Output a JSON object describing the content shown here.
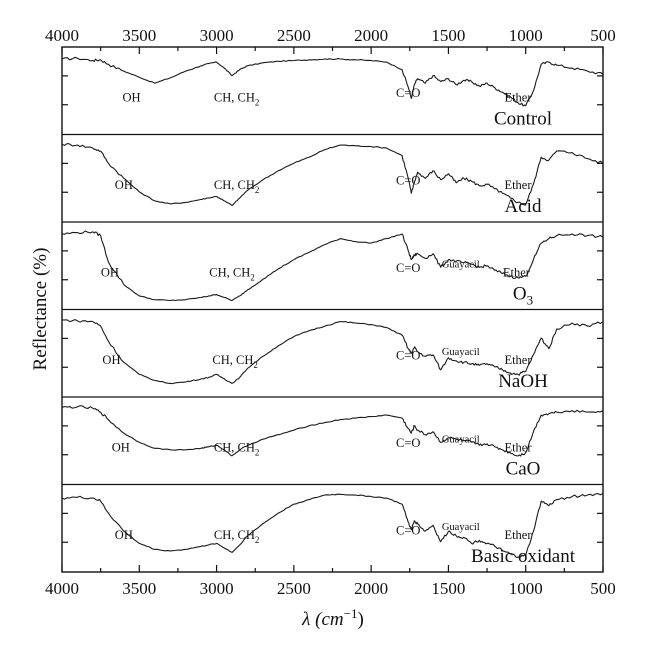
{
  "chart_data": {
    "type": "line",
    "title": "",
    "xlabel": "λ (cm",
    "xlabel_sup": "−1",
    "xlabel_close": ")",
    "ylabel": "Reflectance (%)",
    "xlim": [
      4000,
      500
    ],
    "x_ticks": [
      "4000",
      "3500",
      "3000",
      "2500",
      "2000",
      "1500",
      "1000",
      "500"
    ],
    "x_tick_values": [
      4000,
      3500,
      3000,
      2500,
      2000,
      1500,
      1000,
      500
    ],
    "grid": false,
    "legend": "none",
    "line_color": "#1a1a1a",
    "series": [
      {
        "name": "Control",
        "x": [
          4000,
          3900,
          3800,
          3750,
          3700,
          3600,
          3500,
          3400,
          3300,
          3200,
          3100,
          3050,
          3000,
          2950,
          2900,
          2850,
          2800,
          2700,
          2600,
          2500,
          2400,
          2300,
          2200,
          2100,
          2000,
          1900,
          1800,
          1760,
          1740,
          1720,
          1700,
          1650,
          1600,
          1550,
          1500,
          1450,
          1400,
          1350,
          1300,
          1250,
          1200,
          1150,
          1100,
          1050,
          1000,
          950,
          900,
          850,
          800,
          700,
          600,
          500
        ],
        "y": [
          0.92,
          0.93,
          0.9,
          0.91,
          0.85,
          0.76,
          0.68,
          0.6,
          0.67,
          0.76,
          0.83,
          0.86,
          0.88,
          0.8,
          0.7,
          0.78,
          0.83,
          0.87,
          0.89,
          0.9,
          0.91,
          0.92,
          0.92,
          0.91,
          0.9,
          0.88,
          0.78,
          0.55,
          0.4,
          0.58,
          0.66,
          0.6,
          0.7,
          0.62,
          0.66,
          0.58,
          0.64,
          0.62,
          0.56,
          0.6,
          0.54,
          0.48,
          0.42,
          0.34,
          0.3,
          0.5,
          0.85,
          0.88,
          0.84,
          0.8,
          0.76,
          0.72
        ],
        "annotations": [
          {
            "text": "OH",
            "x": 3550
          },
          {
            "text": "CH, CH",
            "sub": "2",
            "x": 2870
          },
          {
            "text": "C=O",
            "x": 1760
          },
          {
            "text": "Ether",
            "x": 1050
          }
        ]
      },
      {
        "name": "Acid",
        "x": [
          4000,
          3900,
          3800,
          3750,
          3700,
          3600,
          3500,
          3400,
          3300,
          3200,
          3100,
          3050,
          3000,
          2950,
          2900,
          2850,
          2800,
          2700,
          2600,
          2500,
          2400,
          2300,
          2200,
          2100,
          2000,
          1900,
          1800,
          1760,
          1740,
          1720,
          1700,
          1650,
          1600,
          1550,
          1500,
          1450,
          1400,
          1350,
          1300,
          1250,
          1200,
          1150,
          1100,
          1050,
          1000,
          950,
          900,
          850,
          800,
          700,
          600,
          500
        ],
        "y": [
          0.95,
          0.94,
          0.9,
          0.86,
          0.7,
          0.5,
          0.32,
          0.2,
          0.16,
          0.18,
          0.22,
          0.24,
          0.26,
          0.2,
          0.14,
          0.24,
          0.34,
          0.48,
          0.6,
          0.7,
          0.78,
          0.88,
          0.94,
          0.93,
          0.92,
          0.9,
          0.8,
          0.5,
          0.3,
          0.45,
          0.58,
          0.5,
          0.6,
          0.48,
          0.56,
          0.44,
          0.5,
          0.46,
          0.4,
          0.42,
          0.36,
          0.3,
          0.24,
          0.18,
          0.15,
          0.42,
          0.78,
          0.74,
          0.86,
          0.84,
          0.76,
          0.7
        ],
        "annotations": [
          {
            "text": "OH",
            "x": 3600
          },
          {
            "text": "CH, CH",
            "sub": "2",
            "x": 2870
          },
          {
            "text": "C=O",
            "x": 1760
          },
          {
            "text": "Ether",
            "x": 1050
          }
        ]
      },
      {
        "name": "O",
        "name_sub": "3",
        "x": [
          4000,
          3900,
          3800,
          3750,
          3700,
          3600,
          3500,
          3400,
          3300,
          3200,
          3100,
          3050,
          3000,
          2950,
          2900,
          2850,
          2800,
          2700,
          2600,
          2500,
          2400,
          2300,
          2200,
          2100,
          2000,
          1900,
          1800,
          1760,
          1740,
          1720,
          1700,
          1650,
          1600,
          1550,
          1500,
          1450,
          1400,
          1350,
          1300,
          1250,
          1200,
          1150,
          1100,
          1050,
          1000,
          950,
          900,
          850,
          800,
          700,
          600,
          500
        ],
        "y": [
          0.92,
          0.94,
          0.95,
          0.9,
          0.55,
          0.25,
          0.1,
          0.05,
          0.04,
          0.05,
          0.08,
          0.1,
          0.12,
          0.08,
          0.04,
          0.1,
          0.18,
          0.32,
          0.46,
          0.58,
          0.68,
          0.78,
          0.86,
          0.82,
          0.8,
          0.86,
          0.92,
          0.7,
          0.58,
          0.64,
          0.66,
          0.6,
          0.66,
          0.48,
          0.58,
          0.56,
          0.54,
          0.52,
          0.48,
          0.5,
          0.44,
          0.4,
          0.36,
          0.34,
          0.36,
          0.58,
          0.8,
          0.86,
          0.9,
          0.92,
          0.9,
          0.88
        ],
        "annotations": [
          {
            "text": "OH",
            "x": 3690
          },
          {
            "text": "CH, CH",
            "sub": "2",
            "x": 2900
          },
          {
            "text": "C=O",
            "x": 1760
          },
          {
            "text": "Guayacil",
            "x": 1420,
            "small": true
          },
          {
            "text": "Ether",
            "x": 1060
          }
        ]
      },
      {
        "name": "NaOH",
        "x": [
          4000,
          3900,
          3800,
          3750,
          3700,
          3600,
          3500,
          3400,
          3300,
          3200,
          3100,
          3050,
          3000,
          2950,
          2900,
          2850,
          2800,
          2700,
          2600,
          2500,
          2400,
          2300,
          2200,
          2100,
          2000,
          1900,
          1800,
          1760,
          1740,
          1720,
          1700,
          1650,
          1600,
          1550,
          1500,
          1450,
          1400,
          1350,
          1300,
          1250,
          1200,
          1150,
          1100,
          1050,
          1000,
          950,
          900,
          850,
          800,
          700,
          600,
          500
        ],
        "y": [
          0.94,
          0.93,
          0.92,
          0.86,
          0.66,
          0.38,
          0.22,
          0.14,
          0.1,
          0.12,
          0.16,
          0.18,
          0.22,
          0.16,
          0.1,
          0.18,
          0.3,
          0.46,
          0.6,
          0.72,
          0.8,
          0.86,
          0.92,
          0.9,
          0.88,
          0.84,
          0.74,
          0.56,
          0.5,
          0.58,
          0.52,
          0.46,
          0.48,
          0.28,
          0.44,
          0.4,
          0.38,
          0.36,
          0.34,
          0.36,
          0.32,
          0.28,
          0.24,
          0.22,
          0.26,
          0.48,
          0.7,
          0.56,
          0.82,
          0.9,
          0.86,
          0.92
        ],
        "annotations": [
          {
            "text": "OH",
            "x": 3680
          },
          {
            "text": "CH, CH",
            "sub": "2",
            "x": 2880
          },
          {
            "text": "C=O",
            "x": 1760
          },
          {
            "text": "Guayacil",
            "x": 1420,
            "small": true
          },
          {
            "text": "Ether",
            "x": 1050
          }
        ]
      },
      {
        "name": "CaO",
        "x": [
          4000,
          3900,
          3800,
          3750,
          3700,
          3600,
          3500,
          3400,
          3300,
          3200,
          3100,
          3050,
          3000,
          2950,
          2900,
          2850,
          2800,
          2700,
          2600,
          2500,
          2400,
          2300,
          2200,
          2100,
          2000,
          1900,
          1800,
          1760,
          1740,
          1720,
          1700,
          1650,
          1600,
          1550,
          1500,
          1450,
          1400,
          1350,
          1300,
          1250,
          1200,
          1150,
          1100,
          1050,
          1000,
          950,
          900,
          850,
          800,
          700,
          600,
          500
        ],
        "y": [
          0.94,
          0.95,
          0.93,
          0.88,
          0.78,
          0.6,
          0.48,
          0.4,
          0.38,
          0.38,
          0.4,
          0.42,
          0.44,
          0.38,
          0.3,
          0.38,
          0.44,
          0.52,
          0.58,
          0.64,
          0.7,
          0.74,
          0.78,
          0.8,
          0.82,
          0.84,
          0.8,
          0.66,
          0.6,
          0.7,
          0.64,
          0.58,
          0.62,
          0.48,
          0.54,
          0.52,
          0.5,
          0.48,
          0.44,
          0.46,
          0.42,
          0.38,
          0.34,
          0.3,
          0.34,
          0.62,
          0.84,
          0.86,
          0.88,
          0.9,
          0.88,
          0.9
        ],
        "annotations": [
          {
            "text": "OH",
            "x": 3620
          },
          {
            "text": "CH, CH",
            "sub": "2",
            "x": 2870
          },
          {
            "text": "C=O",
            "x": 1760
          },
          {
            "text": "Guayacil",
            "x": 1420,
            "small": true
          },
          {
            "text": "Ether",
            "x": 1050
          }
        ]
      },
      {
        "name": "Basic oxidant",
        "x": [
          4000,
          3900,
          3800,
          3750,
          3700,
          3600,
          3500,
          3400,
          3300,
          3200,
          3100,
          3050,
          3000,
          2950,
          2900,
          2850,
          2800,
          2700,
          2600,
          2500,
          2400,
          2300,
          2200,
          2100,
          2000,
          1900,
          1800,
          1760,
          1740,
          1720,
          1700,
          1650,
          1600,
          1550,
          1500,
          1450,
          1400,
          1350,
          1300,
          1250,
          1200,
          1150,
          1100,
          1050,
          1000,
          950,
          900,
          850,
          800,
          700,
          600,
          500
        ],
        "y": [
          0.9,
          0.91,
          0.9,
          0.86,
          0.7,
          0.46,
          0.3,
          0.22,
          0.2,
          0.22,
          0.26,
          0.28,
          0.3,
          0.24,
          0.18,
          0.28,
          0.4,
          0.56,
          0.7,
          0.82,
          0.88,
          0.94,
          0.95,
          0.94,
          0.92,
          0.9,
          0.82,
          0.58,
          0.48,
          0.6,
          0.56,
          0.46,
          0.54,
          0.32,
          0.46,
          0.4,
          0.38,
          0.3,
          0.34,
          0.3,
          0.26,
          0.2,
          0.16,
          0.12,
          0.14,
          0.46,
          0.86,
          0.8,
          0.88,
          0.92,
          0.94,
          0.96
        ],
        "annotations": [
          {
            "text": "OH",
            "x": 3600
          },
          {
            "text": "CH, CH",
            "sub": "2",
            "x": 2870
          },
          {
            "text": "C=O",
            "x": 1760
          },
          {
            "text": "Guayacil",
            "x": 1420,
            "small": true
          },
          {
            "text": "Ether",
            "x": 1050
          }
        ]
      }
    ]
  }
}
